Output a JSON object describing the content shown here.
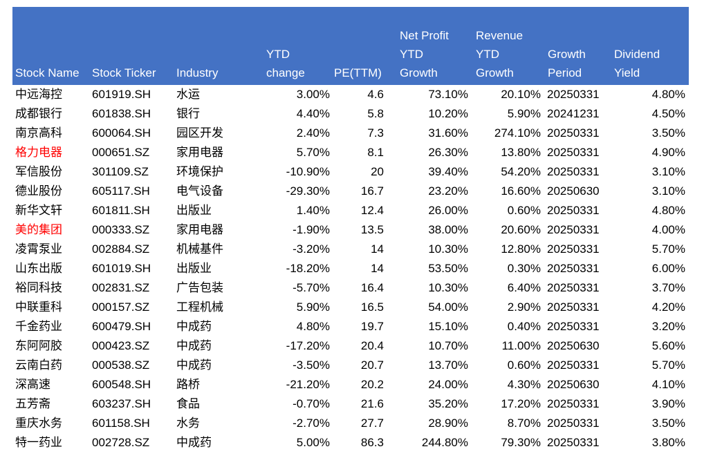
{
  "table": {
    "header_bg_color": "#4472C4",
    "header_text_color": "#FFFFFF",
    "body_text_color": "#000000",
    "highlight_color": "#FF0000",
    "columns": [
      {
        "id": "stock_name",
        "label": "Stock Name"
      },
      {
        "id": "stock_ticker",
        "label": "Stock Ticker"
      },
      {
        "id": "industry",
        "label": "Industry"
      },
      {
        "id": "ytd_change",
        "label": "YTD\nchange"
      },
      {
        "id": "pe_ttm",
        "label": "PE(TTM)"
      },
      {
        "id": "net_profit_ytd_growth",
        "label": "Net Profit\nYTD\nGrowth"
      },
      {
        "id": "revenue_ytd_growth",
        "label": "Revenue\nYTD\nGrowth"
      },
      {
        "id": "growth_period",
        "label": "Growth\nPeriod"
      },
      {
        "id": "dividend_yield",
        "label": "Dividend\nYield"
      }
    ],
    "rows": [
      {
        "stock_name": "中远海控",
        "name_highlighted": false,
        "stock_ticker": "601919.SH",
        "industry": "水运",
        "ytd_change": "3.00%",
        "pe_ttm": "4.6",
        "net_profit_ytd_growth": "73.10%",
        "revenue_ytd_growth": "20.10%",
        "growth_period": "20250331",
        "dividend_yield": "4.80%"
      },
      {
        "stock_name": "成都银行",
        "name_highlighted": false,
        "stock_ticker": "601838.SH",
        "industry": "银行",
        "ytd_change": "4.40%",
        "pe_ttm": "5.8",
        "net_profit_ytd_growth": "10.20%",
        "revenue_ytd_growth": "5.90%",
        "growth_period": "20241231",
        "dividend_yield": "4.50%"
      },
      {
        "stock_name": "南京高科",
        "name_highlighted": false,
        "stock_ticker": "600064.SH",
        "industry": "园区开发",
        "ytd_change": "2.40%",
        "pe_ttm": "7.3",
        "net_profit_ytd_growth": "31.60%",
        "revenue_ytd_growth": "274.10%",
        "growth_period": "20250331",
        "dividend_yield": "3.50%"
      },
      {
        "stock_name": "格力电器",
        "name_highlighted": true,
        "stock_ticker": "000651.SZ",
        "industry": "家用电器",
        "ytd_change": "5.70%",
        "pe_ttm": "8.1",
        "net_profit_ytd_growth": "26.30%",
        "revenue_ytd_growth": "13.80%",
        "growth_period": "20250331",
        "dividend_yield": "4.90%"
      },
      {
        "stock_name": "军信股份",
        "name_highlighted": false,
        "stock_ticker": "301109.SZ",
        "industry": "环境保护",
        "ytd_change": "-10.90%",
        "pe_ttm": "20",
        "net_profit_ytd_growth": "39.40%",
        "revenue_ytd_growth": "54.20%",
        "growth_period": "20250331",
        "dividend_yield": "3.10%"
      },
      {
        "stock_name": "德业股份",
        "name_highlighted": false,
        "stock_ticker": "605117.SH",
        "industry": "电气设备",
        "ytd_change": "-29.30%",
        "pe_ttm": "16.7",
        "net_profit_ytd_growth": "23.20%",
        "revenue_ytd_growth": "16.60%",
        "growth_period": "20250630",
        "dividend_yield": "3.10%"
      },
      {
        "stock_name": "新华文轩",
        "name_highlighted": false,
        "stock_ticker": "601811.SH",
        "industry": "出版业",
        "ytd_change": "1.40%",
        "pe_ttm": "12.4",
        "net_profit_ytd_growth": "26.00%",
        "revenue_ytd_growth": "0.60%",
        "growth_period": "20250331",
        "dividend_yield": "4.80%"
      },
      {
        "stock_name": "美的集团",
        "name_highlighted": true,
        "stock_ticker": "000333.SZ",
        "industry": "家用电器",
        "ytd_change": "-1.90%",
        "pe_ttm": "13.5",
        "net_profit_ytd_growth": "38.00%",
        "revenue_ytd_growth": "20.60%",
        "growth_period": "20250331",
        "dividend_yield": "4.00%"
      },
      {
        "stock_name": "凌霄泵业",
        "name_highlighted": false,
        "stock_ticker": "002884.SZ",
        "industry": "机械基件",
        "ytd_change": "-3.20%",
        "pe_ttm": "14",
        "net_profit_ytd_growth": "10.30%",
        "revenue_ytd_growth": "12.80%",
        "growth_period": "20250331",
        "dividend_yield": "5.70%"
      },
      {
        "stock_name": "山东出版",
        "name_highlighted": false,
        "stock_ticker": "601019.SH",
        "industry": "出版业",
        "ytd_change": "-18.20%",
        "pe_ttm": "14",
        "net_profit_ytd_growth": "53.50%",
        "revenue_ytd_growth": "0.30%",
        "growth_period": "20250331",
        "dividend_yield": "6.00%"
      },
      {
        "stock_name": "裕同科技",
        "name_highlighted": false,
        "stock_ticker": "002831.SZ",
        "industry": "广告包装",
        "ytd_change": "-5.70%",
        "pe_ttm": "16.4",
        "net_profit_ytd_growth": "10.30%",
        "revenue_ytd_growth": "6.40%",
        "growth_period": "20250331",
        "dividend_yield": "3.70%"
      },
      {
        "stock_name": "中联重科",
        "name_highlighted": false,
        "stock_ticker": "000157.SZ",
        "industry": "工程机械",
        "ytd_change": "5.90%",
        "pe_ttm": "16.5",
        "net_profit_ytd_growth": "54.00%",
        "revenue_ytd_growth": "2.90%",
        "growth_period": "20250331",
        "dividend_yield": "4.20%"
      },
      {
        "stock_name": "千金药业",
        "name_highlighted": false,
        "stock_ticker": "600479.SH",
        "industry": "中成药",
        "ytd_change": "4.80%",
        "pe_ttm": "19.7",
        "net_profit_ytd_growth": "15.10%",
        "revenue_ytd_growth": "0.40%",
        "growth_period": "20250331",
        "dividend_yield": "3.20%"
      },
      {
        "stock_name": "东阿阿胶",
        "name_highlighted": false,
        "stock_ticker": "000423.SZ",
        "industry": "中成药",
        "ytd_change": "-17.20%",
        "pe_ttm": "20.4",
        "net_profit_ytd_growth": "10.70%",
        "revenue_ytd_growth": "11.00%",
        "growth_period": "20250630",
        "dividend_yield": "5.60%"
      },
      {
        "stock_name": "云南白药",
        "name_highlighted": false,
        "stock_ticker": "000538.SZ",
        "industry": "中成药",
        "ytd_change": "-3.50%",
        "pe_ttm": "20.7",
        "net_profit_ytd_growth": "13.70%",
        "revenue_ytd_growth": "0.60%",
        "growth_period": "20250331",
        "dividend_yield": "5.70%"
      },
      {
        "stock_name": "深高速",
        "name_highlighted": false,
        "stock_ticker": "600548.SH",
        "industry": "路桥",
        "ytd_change": "-21.20%",
        "pe_ttm": "20.2",
        "net_profit_ytd_growth": "24.00%",
        "revenue_ytd_growth": "4.30%",
        "growth_period": "20250630",
        "dividend_yield": "4.10%"
      },
      {
        "stock_name": "五芳斋",
        "name_highlighted": false,
        "stock_ticker": "603237.SH",
        "industry": "食品",
        "ytd_change": "-0.70%",
        "pe_ttm": "21.6",
        "net_profit_ytd_growth": "35.20%",
        "revenue_ytd_growth": "17.20%",
        "growth_period": "20250331",
        "dividend_yield": "3.90%"
      },
      {
        "stock_name": "重庆水务",
        "name_highlighted": false,
        "stock_ticker": "601158.SH",
        "industry": "水务",
        "ytd_change": "-2.70%",
        "pe_ttm": "27.7",
        "net_profit_ytd_growth": "28.90%",
        "revenue_ytd_growth": "8.70%",
        "growth_period": "20250331",
        "dividend_yield": "3.50%"
      },
      {
        "stock_name": "特一药业",
        "name_highlighted": false,
        "stock_ticker": "002728.SZ",
        "industry": "中成药",
        "ytd_change": "5.00%",
        "pe_ttm": "86.3",
        "net_profit_ytd_growth": "244.80%",
        "revenue_ytd_growth": "79.30%",
        "growth_period": "20250331",
        "dividend_yield": "3.80%"
      }
    ]
  }
}
